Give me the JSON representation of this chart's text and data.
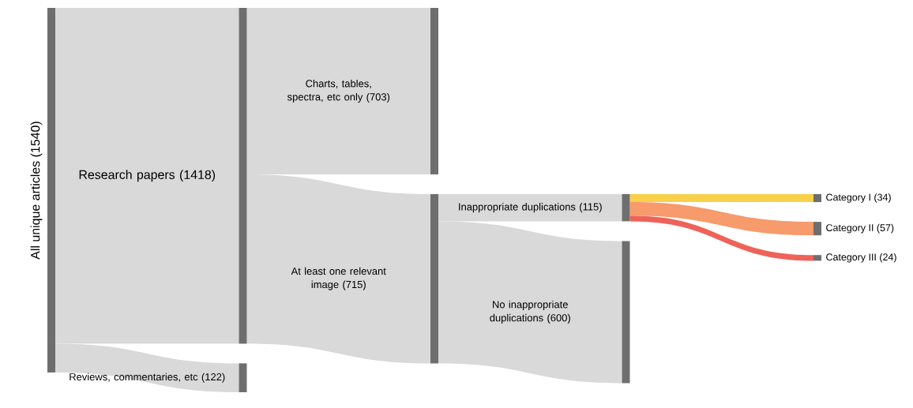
{
  "chart_data": {
    "type": "other",
    "categories": [
      "All unique articles",
      "Research papers",
      "Charts, tables, spectra, etc only",
      "At least one relevant image",
      "Inappropriate duplications",
      "Category I",
      "Category II",
      "Category III",
      "No inappropriate duplications",
      "Reviews, commentaries, etc"
    ],
    "values": [
      1540,
      1418,
      703,
      715,
      115,
      34,
      57,
      24,
      600,
      122
    ],
    "value_labels": [
      "(1540)",
      "(1418)",
      "(703)",
      "(715)",
      "(115)",
      "(34)",
      "(57)",
      "(24)",
      "(600)",
      "(122)"
    ],
    "colors": [
      "#d9d9d9",
      "#d9d9d9",
      "#d9d9d9",
      "#d9d9d9",
      "#d9d9d9",
      "#f9d04a",
      "#f79a6c",
      "#ef6259",
      "#d9d9d9",
      "#d9d9d9"
    ],
    "color": "#6e6e6e"
  }
}
